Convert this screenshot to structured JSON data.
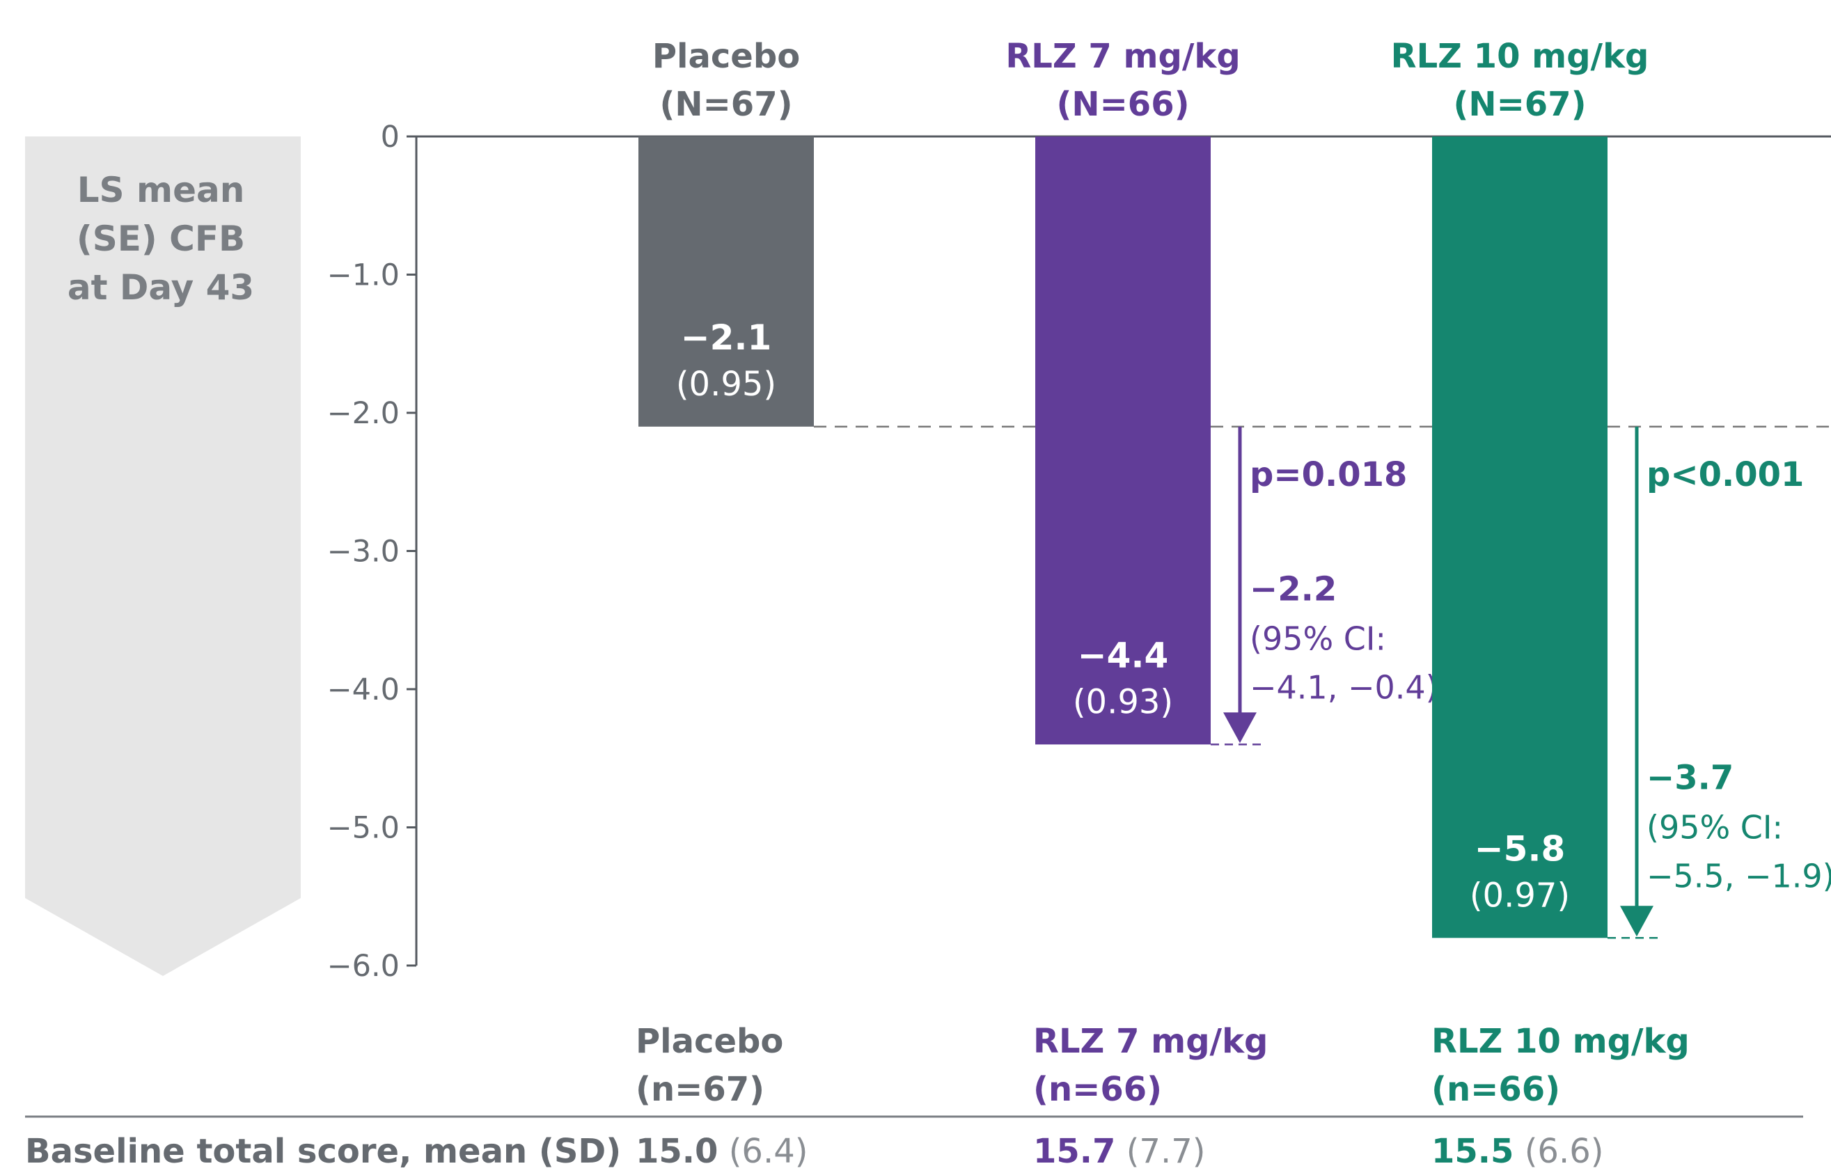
{
  "chart_data": {
    "type": "bar",
    "ylabel": "LS mean (SE) CFB at Day 43",
    "ylabel_lines": [
      "LS mean",
      "(SE) CFB",
      "at Day 43"
    ],
    "ylim": [
      -6.0,
      0
    ],
    "yticks": [
      {
        "value": 0,
        "label": "0"
      },
      {
        "value": -1.0,
        "label": "−1.0"
      },
      {
        "value": -2.0,
        "label": "−2.0"
      },
      {
        "value": -3.0,
        "label": "−3.0"
      },
      {
        "value": -4.0,
        "label": "−4.0"
      },
      {
        "value": -5.0,
        "label": "−5.0"
      },
      {
        "value": -6.0,
        "label": "−6.0"
      }
    ],
    "grid": false,
    "reference_value": -2.1,
    "series": [
      {
        "name": "Placebo",
        "header_n": "(N=67)",
        "value": -2.1,
        "value_label": "−2.1",
        "se_label": "(0.95)",
        "color": "#656a70"
      },
      {
        "name": "RLZ 7 mg/kg",
        "header_n": "(N=66)",
        "value": -4.4,
        "value_label": "−4.4",
        "se_label": "(0.93)",
        "color": "#613d98",
        "p_value": "p=0.018",
        "diff_label": "−2.2",
        "ci_lines": [
          "(95% CI:",
          "−4.1, −0.4)"
        ]
      },
      {
        "name": "RLZ 10 mg/kg",
        "header_n": "(N=67)",
        "value": -5.8,
        "value_label": "−5.8",
        "se_label": "(0.97)",
        "color": "#15866f",
        "p_value": "p<0.001",
        "diff_label": "−3.7",
        "ci_lines": [
          "(95% CI:",
          "−5.5, −1.9)"
        ]
      }
    ]
  },
  "baseline_table": {
    "row_label": "Baseline total score, mean (SD)",
    "columns": [
      {
        "name": "Placebo",
        "n": "(n=67)",
        "mean": "15.0",
        "sd": "(6.4)",
        "color": "#656a70"
      },
      {
        "name": "RLZ 7 mg/kg",
        "n": "(n=66)",
        "mean": "15.7",
        "sd": "(7.7)",
        "color": "#613d98"
      },
      {
        "name": "RLZ 10 mg/kg",
        "n": "(n=66)",
        "mean": "15.5",
        "sd": "(6.6)",
        "color": "#15866f"
      }
    ]
  },
  "colors": {
    "axis": "#555a60",
    "tick_text": "#656a70",
    "ylabel_arrow": "#e6e6e6",
    "ylabel_text": "#7a7e83",
    "table_text": "#656a70"
  }
}
